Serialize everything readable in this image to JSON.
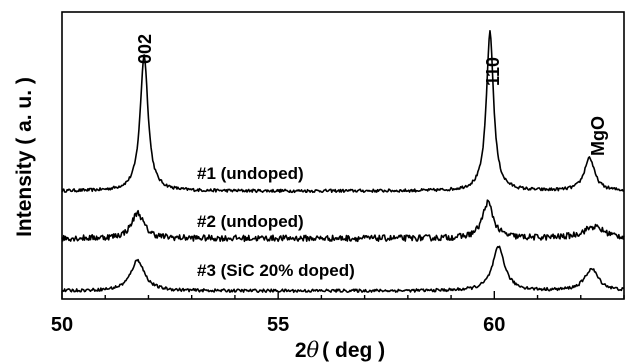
{
  "chart_data": {
    "type": "line",
    "xlabel": "2θ ( deg )",
    "xlabel_prefix": "2",
    "xlabel_symbol": "θ",
    "xlabel_unit": "( deg )",
    "ylabel": "Intensity ( a. u. )",
    "xlim": [
      50,
      63
    ],
    "ylim": [
      0,
      1
    ],
    "xticks": [
      50,
      55,
      60
    ],
    "y_ticks_shown": false,
    "grid": false,
    "legend": "none",
    "series": [
      {
        "name": "#1 (undoped)",
        "baseline": 0.41,
        "peaks": [
          {
            "x": 51.9,
            "height": 0.53,
            "width": 0.11
          },
          {
            "x": 59.9,
            "height": 0.62,
            "width": 0.1
          },
          {
            "x": 62.2,
            "height": 0.13,
            "width": 0.14
          }
        ]
      },
      {
        "name": "#2 (undoped)",
        "baseline": 0.225,
        "peaks": [
          {
            "x": 51.75,
            "height": 0.1,
            "width": 0.17
          },
          {
            "x": 59.85,
            "height": 0.14,
            "width": 0.15
          },
          {
            "x": 62.3,
            "height": 0.045,
            "width": 0.3
          }
        ]
      },
      {
        "name": "#3 (SiC 20% doped)",
        "baseline": 0.02,
        "peaks": [
          {
            "x": 51.75,
            "height": 0.12,
            "width": 0.19
          },
          {
            "x": 60.1,
            "height": 0.17,
            "width": 0.17
          },
          {
            "x": 62.25,
            "height": 0.085,
            "width": 0.19
          }
        ]
      }
    ],
    "annotations": [
      {
        "text": "002",
        "x": 51.9
      },
      {
        "text": "110",
        "x": 59.9
      },
      {
        "text": "MgO",
        "x": 62.2
      }
    ],
    "colors": {
      "line": "#000000",
      "background": "#ffffff"
    }
  }
}
